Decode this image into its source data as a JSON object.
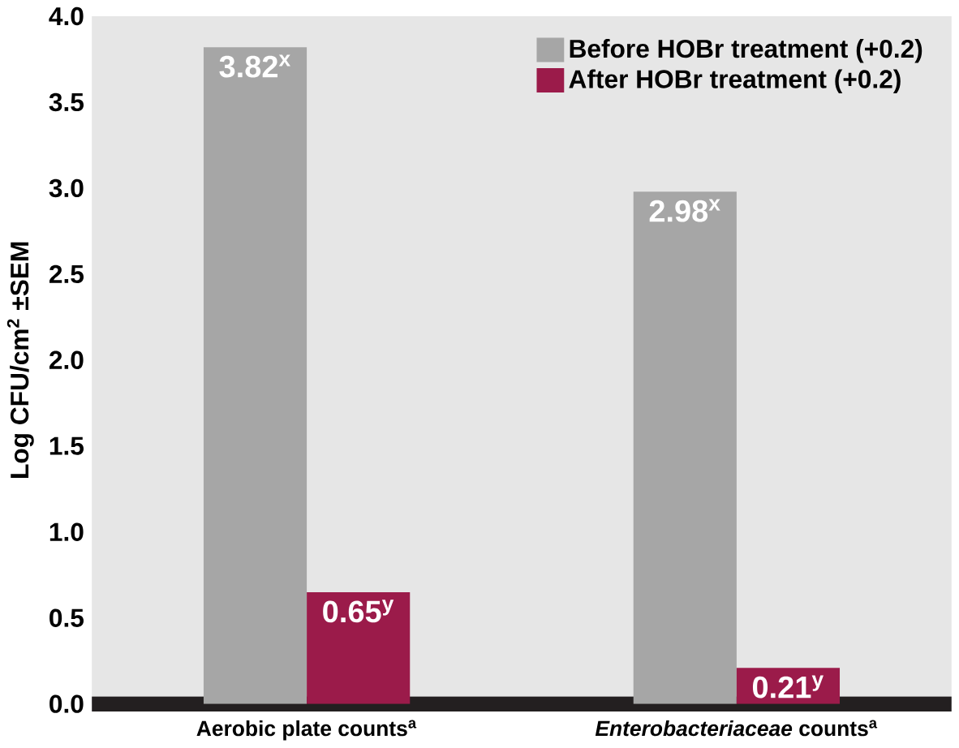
{
  "chart_data": {
    "type": "bar",
    "ylabel": "Log CFU/cm$^{2}$ ±SEM",
    "categories": [
      "Aerobic plate counts$^{a}$",
      "*Enterobacteriaceae* counts$^{a}$"
    ],
    "series": [
      {
        "name": "Before HOBr treatment (+0.2)",
        "color": "#a6a6a6",
        "values": [
          3.82,
          2.98
        ],
        "value_labels": [
          "3.82$^{x}$",
          "2.98$^{x}$"
        ]
      },
      {
        "name": "After HOBr treatment (+0.2)",
        "color": "#9b1b4a",
        "values": [
          0.65,
          0.21
        ],
        "value_labels": [
          "0.65$^{y}$",
          "0.21$^{y}$"
        ]
      }
    ],
    "ylim": [
      0,
      4
    ],
    "yticks": [
      {
        "value": 0,
        "label": "0.0"
      },
      {
        "value": 0.5,
        "label": "0.5"
      },
      {
        "value": 1,
        "label": "1.0"
      },
      {
        "value": 1.5,
        "label": "1.5"
      },
      {
        "value": 2,
        "label": "2.0"
      },
      {
        "value": 2.5,
        "label": "2.5"
      },
      {
        "value": 3,
        "label": "3.0"
      },
      {
        "value": 3.5,
        "label": "3.5"
      },
      {
        "value": 4,
        "label": "4.0"
      }
    ],
    "legend": "top right"
  }
}
